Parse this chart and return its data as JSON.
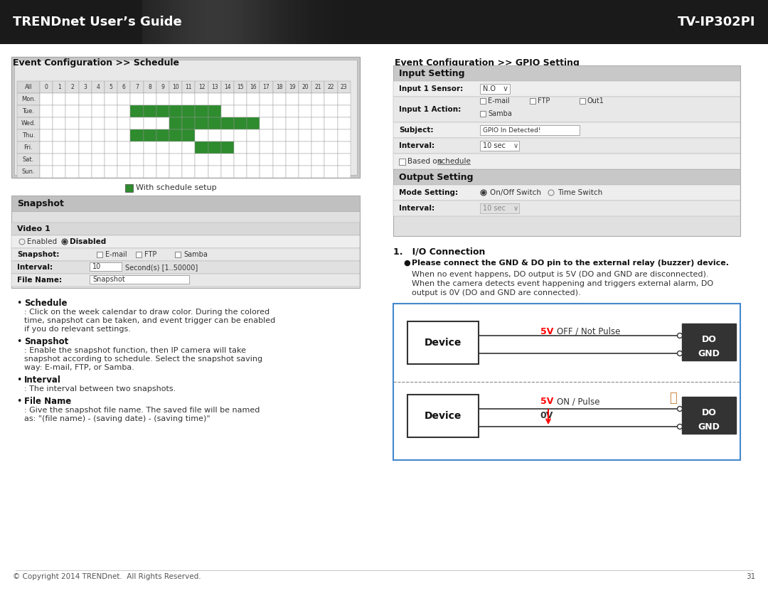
{
  "header_bg": "#2a2a2a",
  "header_text_left": "TRENDnet User’s Guide",
  "header_text_right": "TV-IP302PI",
  "header_text_color": "#ffffff",
  "page_bg": "#ffffff",
  "footer_text": "© Copyright 2014 TRENDnet.  All Rights Reserved.",
  "footer_page": "31",
  "section1_title": "Event Configuration >> Schedule",
  "section2_title": "Event Configuration >> GPIO Setting",
  "schedule_days": [
    "All",
    "Mon.",
    "Tue.",
    "Wed.",
    "Thu.",
    "Fri.",
    "Sat.",
    "Sun."
  ],
  "schedule_hours": [
    "0",
    "1",
    "2",
    "3",
    "4",
    "5",
    "6",
    "7",
    "8",
    "9",
    "10",
    "11",
    "12",
    "13",
    "14",
    "15",
    "16",
    "17",
    "18",
    "19",
    "20",
    "21",
    "22",
    "23"
  ],
  "green_cells": {
    "Tue.": [
      7,
      8,
      9,
      10,
      11,
      12,
      13
    ],
    "Wed.": [
      10,
      11,
      12,
      13,
      14,
      15,
      16
    ],
    "Thu.": [
      7,
      8,
      9,
      10,
      11
    ],
    "Fri.": [
      12,
      13,
      14
    ]
  },
  "green_color": "#2e8b2e",
  "snapshot_title": "Snapshot",
  "bullet_points": [
    [
      "Schedule",
      ": Click on the week calendar to draw color. During the colored time, snapshot can be taken, and event trigger can be enabled if you do relevant settings."
    ],
    [
      "Snapshot",
      ": Enable the snapshot function, then IP camera will take snapshot according to schedule. Select the snapshot saving way: E-mail, FTP, or Samba."
    ],
    [
      "Interval",
      ": The interval between two snapshots."
    ],
    [
      "File Name",
      ": Give the snapshot file name. The saved file will be named as: \"(file name) - (saving date) - (saving time)\""
    ]
  ],
  "io_title": "I/O Connection",
  "io_bullet_title": "Please connect the GND & DO pin to the external relay (buzzer) device.",
  "io_text1": "When no event happens, DO output is 5V (DO and GND are disconnected).",
  "io_text2": "When the camera detects event happening and triggers external alarm, DO output is 0V (DO and GND are connected)."
}
